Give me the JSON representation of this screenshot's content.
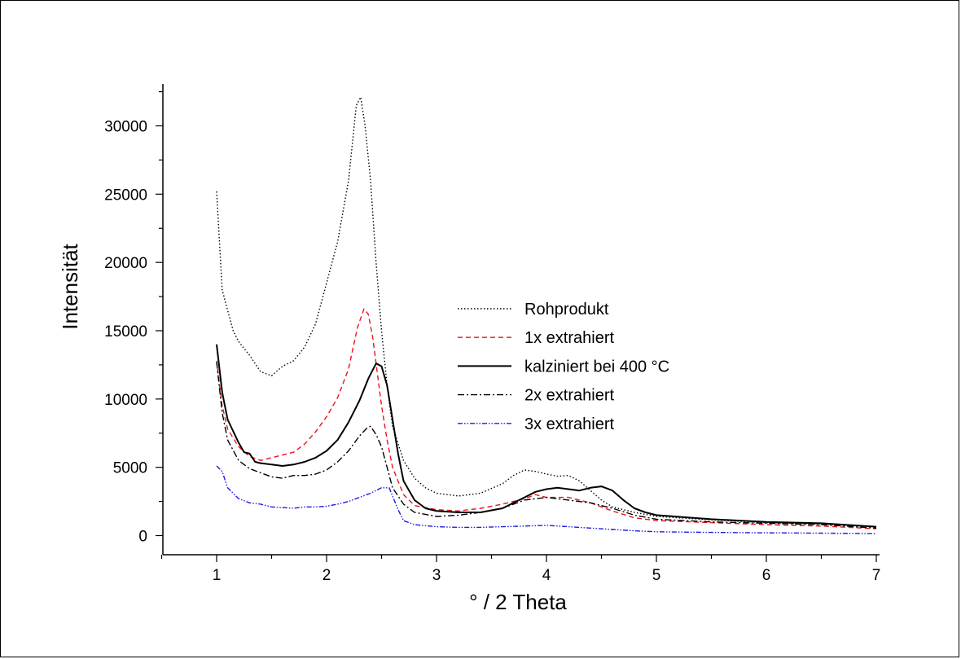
{
  "chart_data": {
    "type": "line",
    "title": "",
    "xlabel": "° / 2 Theta",
    "ylabel": "Intensität",
    "xlim": [
      0.5,
      7
    ],
    "ylim": [
      -1300,
      33000
    ],
    "x_ticks": [
      1,
      2,
      3,
      4,
      5,
      6,
      7
    ],
    "x_tick_labels": [
      "1",
      "2",
      "3",
      "4",
      "5",
      "6",
      "7"
    ],
    "y_ticks": [
      0,
      5000,
      10000,
      15000,
      20000,
      25000,
      30000
    ],
    "y_tick_labels": [
      "0",
      "5000",
      "10000",
      "15000",
      "20000",
      "25000",
      "30000"
    ],
    "grid": false,
    "legend_position": "center-right",
    "series": [
      {
        "name": "Rohprodukt",
        "color": "#000000",
        "dash": "dotted",
        "points": [
          [
            1.0,
            25200
          ],
          [
            1.05,
            18000
          ],
          [
            1.1,
            16500
          ],
          [
            1.15,
            15000
          ],
          [
            1.2,
            14200
          ],
          [
            1.3,
            13200
          ],
          [
            1.4,
            12000
          ],
          [
            1.5,
            11700
          ],
          [
            1.6,
            12400
          ],
          [
            1.7,
            12800
          ],
          [
            1.8,
            13800
          ],
          [
            1.9,
            15500
          ],
          [
            2.0,
            18500
          ],
          [
            2.1,
            21500
          ],
          [
            2.2,
            26000
          ],
          [
            2.27,
            31500
          ],
          [
            2.31,
            32100
          ],
          [
            2.35,
            30000
          ],
          [
            2.4,
            26000
          ],
          [
            2.45,
            20000
          ],
          [
            2.5,
            15000
          ],
          [
            2.55,
            11000
          ],
          [
            2.6,
            8000
          ],
          [
            2.7,
            5500
          ],
          [
            2.8,
            4200
          ],
          [
            2.9,
            3500
          ],
          [
            3.0,
            3100
          ],
          [
            3.2,
            2900
          ],
          [
            3.4,
            3100
          ],
          [
            3.6,
            3800
          ],
          [
            3.7,
            4400
          ],
          [
            3.8,
            4800
          ],
          [
            3.9,
            4700
          ],
          [
            4.0,
            4500
          ],
          [
            4.1,
            4350
          ],
          [
            4.2,
            4400
          ],
          [
            4.3,
            4000
          ],
          [
            4.4,
            3300
          ],
          [
            4.5,
            2600
          ],
          [
            4.6,
            2100
          ],
          [
            4.8,
            1700
          ],
          [
            5.0,
            1400
          ],
          [
            5.5,
            1150
          ],
          [
            6.0,
            950
          ],
          [
            6.5,
            850
          ],
          [
            7.0,
            650
          ]
        ]
      },
      {
        "name": "1x extrahiert",
        "color": "#e8141a",
        "dash": "dashed",
        "points": [
          [
            1.0,
            12800
          ],
          [
            1.05,
            9500
          ],
          [
            1.1,
            7800
          ],
          [
            1.2,
            6500
          ],
          [
            1.3,
            5800
          ],
          [
            1.4,
            5500
          ],
          [
            1.5,
            5700
          ],
          [
            1.6,
            5900
          ],
          [
            1.7,
            6100
          ],
          [
            1.8,
            6700
          ],
          [
            1.9,
            7600
          ],
          [
            2.0,
            8700
          ],
          [
            2.1,
            10100
          ],
          [
            2.2,
            12200
          ],
          [
            2.28,
            15200
          ],
          [
            2.34,
            16600
          ],
          [
            2.38,
            16200
          ],
          [
            2.42,
            14500
          ],
          [
            2.46,
            12000
          ],
          [
            2.5,
            9500
          ],
          [
            2.55,
            7000
          ],
          [
            2.6,
            5000
          ],
          [
            2.7,
            3000
          ],
          [
            2.8,
            2200
          ],
          [
            3.0,
            1900
          ],
          [
            3.2,
            1800
          ],
          [
            3.4,
            2000
          ],
          [
            3.6,
            2300
          ],
          [
            3.8,
            2700
          ],
          [
            3.9,
            3000
          ],
          [
            4.0,
            2800
          ],
          [
            4.2,
            2800
          ],
          [
            4.4,
            2400
          ],
          [
            4.6,
            1800
          ],
          [
            4.8,
            1300
          ],
          [
            5.0,
            1100
          ],
          [
            5.5,
            950
          ],
          [
            6.0,
            800
          ],
          [
            6.5,
            700
          ],
          [
            7.0,
            500
          ]
        ]
      },
      {
        "name": "kalziniert bei 400 °C",
        "color": "#000000",
        "dash": "solid",
        "points": [
          [
            1.0,
            14000
          ],
          [
            1.05,
            10500
          ],
          [
            1.1,
            8500
          ],
          [
            1.2,
            6800
          ],
          [
            1.25,
            6100
          ],
          [
            1.3,
            6000
          ],
          [
            1.35,
            5400
          ],
          [
            1.4,
            5300
          ],
          [
            1.5,
            5200
          ],
          [
            1.6,
            5100
          ],
          [
            1.7,
            5200
          ],
          [
            1.8,
            5400
          ],
          [
            1.9,
            5700
          ],
          [
            2.0,
            6200
          ],
          [
            2.1,
            7000
          ],
          [
            2.2,
            8300
          ],
          [
            2.3,
            9900
          ],
          [
            2.38,
            11500
          ],
          [
            2.45,
            12600
          ],
          [
            2.5,
            12400
          ],
          [
            2.55,
            11000
          ],
          [
            2.6,
            8500
          ],
          [
            2.65,
            6000
          ],
          [
            2.7,
            4000
          ],
          [
            2.8,
            2600
          ],
          [
            2.9,
            2000
          ],
          [
            3.0,
            1800
          ],
          [
            3.2,
            1700
          ],
          [
            3.4,
            1700
          ],
          [
            3.6,
            2000
          ],
          [
            3.8,
            2800
          ],
          [
            3.9,
            3200
          ],
          [
            4.0,
            3400
          ],
          [
            4.1,
            3500
          ],
          [
            4.2,
            3400
          ],
          [
            4.3,
            3300
          ],
          [
            4.4,
            3500
          ],
          [
            4.5,
            3600
          ],
          [
            4.6,
            3300
          ],
          [
            4.7,
            2600
          ],
          [
            4.8,
            2000
          ],
          [
            4.9,
            1700
          ],
          [
            5.0,
            1500
          ],
          [
            5.5,
            1200
          ],
          [
            6.0,
            1000
          ],
          [
            6.5,
            900
          ],
          [
            7.0,
            650
          ]
        ]
      },
      {
        "name": "2x extrahiert",
        "color": "#000000",
        "dash": "dashdot",
        "points": [
          [
            1.0,
            12700
          ],
          [
            1.05,
            9000
          ],
          [
            1.1,
            7000
          ],
          [
            1.2,
            5500
          ],
          [
            1.3,
            4900
          ],
          [
            1.4,
            4600
          ],
          [
            1.5,
            4300
          ],
          [
            1.6,
            4200
          ],
          [
            1.7,
            4400
          ],
          [
            1.8,
            4400
          ],
          [
            1.9,
            4500
          ],
          [
            2.0,
            4800
          ],
          [
            2.1,
            5400
          ],
          [
            2.2,
            6200
          ],
          [
            2.3,
            7300
          ],
          [
            2.37,
            7900
          ],
          [
            2.4,
            8000
          ],
          [
            2.45,
            7400
          ],
          [
            2.5,
            6500
          ],
          [
            2.55,
            5000
          ],
          [
            2.6,
            3500
          ],
          [
            2.7,
            2300
          ],
          [
            2.8,
            1700
          ],
          [
            3.0,
            1400
          ],
          [
            3.2,
            1500
          ],
          [
            3.4,
            1700
          ],
          [
            3.6,
            2000
          ],
          [
            3.8,
            2600
          ],
          [
            4.0,
            2800
          ],
          [
            4.2,
            2600
          ],
          [
            4.4,
            2400
          ],
          [
            4.6,
            2000
          ],
          [
            4.8,
            1500
          ],
          [
            5.0,
            1200
          ],
          [
            5.5,
            1000
          ],
          [
            6.0,
            900
          ],
          [
            6.5,
            800
          ],
          [
            7.0,
            550
          ]
        ]
      },
      {
        "name": "3x extrahiert",
        "color": "#1c1ce0",
        "dash": "dashdotdot",
        "points": [
          [
            1.0,
            5100
          ],
          [
            1.05,
            4700
          ],
          [
            1.1,
            3500
          ],
          [
            1.2,
            2700
          ],
          [
            1.3,
            2400
          ],
          [
            1.4,
            2300
          ],
          [
            1.5,
            2100
          ],
          [
            1.6,
            2050
          ],
          [
            1.7,
            2000
          ],
          [
            1.8,
            2100
          ],
          [
            1.9,
            2100
          ],
          [
            2.0,
            2150
          ],
          [
            2.1,
            2300
          ],
          [
            2.2,
            2500
          ],
          [
            2.3,
            2800
          ],
          [
            2.4,
            3100
          ],
          [
            2.5,
            3500
          ],
          [
            2.57,
            3500
          ],
          [
            2.6,
            2900
          ],
          [
            2.65,
            1900
          ],
          [
            2.7,
            1100
          ],
          [
            2.8,
            800
          ],
          [
            3.0,
            650
          ],
          [
            3.2,
            600
          ],
          [
            3.4,
            600
          ],
          [
            3.6,
            650
          ],
          [
            3.8,
            700
          ],
          [
            4.0,
            750
          ],
          [
            4.2,
            650
          ],
          [
            4.4,
            550
          ],
          [
            4.6,
            450
          ],
          [
            4.8,
            350
          ],
          [
            5.0,
            280
          ],
          [
            5.5,
            230
          ],
          [
            6.0,
            200
          ],
          [
            6.5,
            180
          ],
          [
            7.0,
            150
          ]
        ]
      }
    ]
  }
}
